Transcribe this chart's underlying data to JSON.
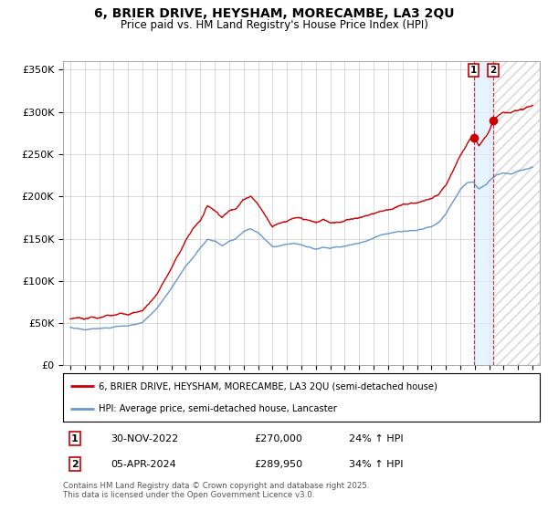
{
  "title": "6, BRIER DRIVE, HEYSHAM, MORECAMBE, LA3 2QU",
  "subtitle": "Price paid vs. HM Land Registry's House Price Index (HPI)",
  "ylim": [
    0,
    360000
  ],
  "yticks": [
    0,
    50000,
    100000,
    150000,
    200000,
    250000,
    300000,
    350000
  ],
  "ytick_labels": [
    "£0",
    "£50K",
    "£100K",
    "£150K",
    "£200K",
    "£250K",
    "£300K",
    "£350K"
  ],
  "xlim_start": 1994.5,
  "xlim_end": 2027.5,
  "red_line_color": "#cc0000",
  "blue_line_color": "#6699cc",
  "blue_fill_color": "#ddeeff",
  "point1_x": 2022.92,
  "point1_y": 270000,
  "point2_x": 2024.27,
  "point2_y": 289950,
  "point1_label": "1",
  "point2_label": "2",
  "point1_date": "30-NOV-2022",
  "point1_price": "£270,000",
  "point1_hpi": "24% ↑ HPI",
  "point2_date": "05-APR-2024",
  "point2_price": "£289,950",
  "point2_hpi": "34% ↑ HPI",
  "legend1": "6, BRIER DRIVE, HEYSHAM, MORECAMBE, LA3 2QU (semi-detached house)",
  "legend2": "HPI: Average price, semi-detached house, Lancaster",
  "footnote": "Contains HM Land Registry data © Crown copyright and database right 2025.\nThis data is licensed under the Open Government Licence v3.0.",
  "background_color": "#ffffff",
  "grid_color": "#cccccc"
}
